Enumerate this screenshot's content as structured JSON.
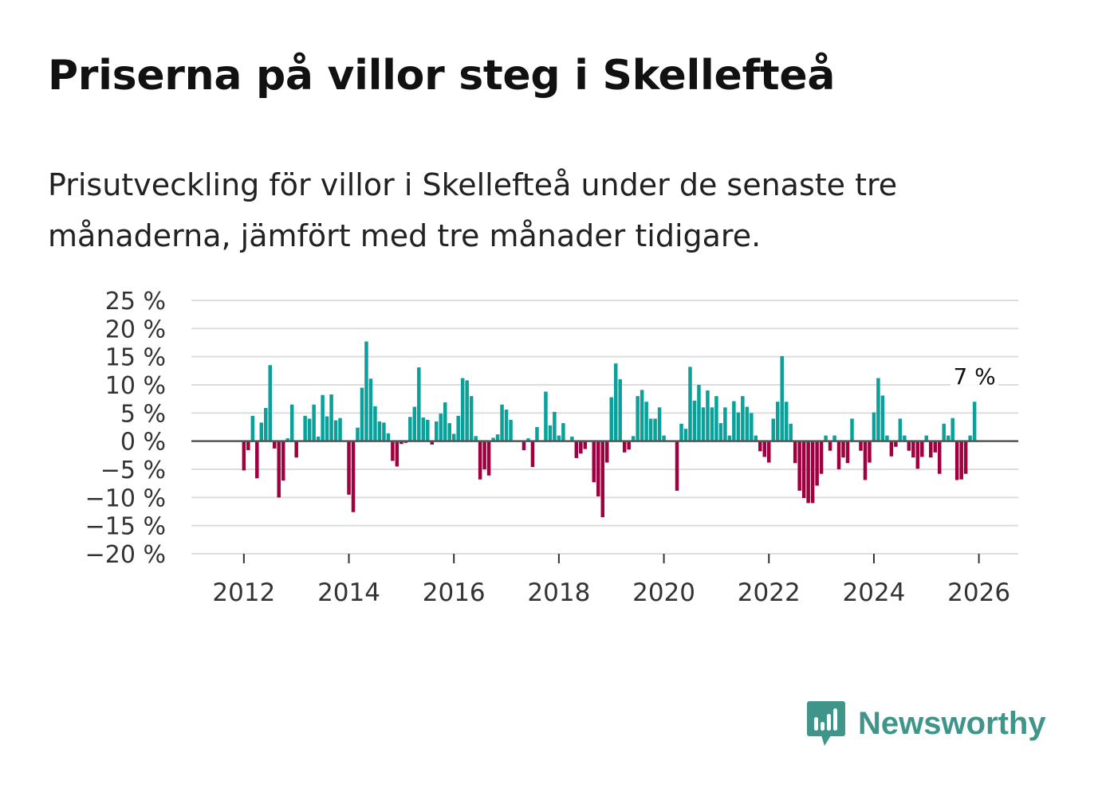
{
  "title": "Priserna på villor steg i Skellefteå",
  "subtitle": "Prisutveckling för villor i Skellefteå under de senaste tre månaderna, jämfört med tre månader tidigare.",
  "brand": {
    "name": "Newsworthy",
    "icon": "newsworthy-logo-icon",
    "color": "#3f958a"
  },
  "colors": {
    "positive": "#0aa19a",
    "negative": "#a0003f",
    "grid": "#dddddd",
    "zero": "#555555"
  },
  "chart_data": {
    "type": "bar",
    "title": "Priserna på villor steg i Skellefteå",
    "xlabel": "",
    "ylabel": "",
    "ylim": [
      -20,
      25
    ],
    "yticks": [
      25,
      20,
      15,
      10,
      5,
      0,
      -5,
      -10,
      -15,
      -20
    ],
    "ytick_labels": [
      "25 %",
      "20 %",
      "15 %",
      "10 %",
      "5 %",
      "0 %",
      "−5 %",
      "−10 %",
      "−15 %",
      "−20 %"
    ],
    "xlim": [
      2011.0,
      2026.75
    ],
    "xticks": [
      2012,
      2014,
      2016,
      2018,
      2020,
      2022,
      2024,
      2026
    ],
    "xtick_labels": [
      "2012",
      "2014",
      "2016",
      "2018",
      "2020",
      "2022",
      "2024",
      "2026"
    ],
    "start": "2012-01",
    "frequency": "monthly",
    "values": [
      -5.2,
      -1.6,
      4.5,
      -6.6,
      3.3,
      5.9,
      13.5,
      -1.3,
      -10.0,
      -7.0,
      0.5,
      6.5,
      -2.9,
      0.0,
      4.5,
      4.0,
      6.5,
      0.8,
      8.2,
      4.4,
      8.3,
      3.7,
      4.1,
      0.0,
      -9.5,
      -12.6,
      2.4,
      9.5,
      17.7,
      11.1,
      6.2,
      3.5,
      3.3,
      1.4,
      -3.5,
      -4.5,
      -0.5,
      -0.3,
      4.3,
      6.1,
      13.1,
      4.2,
      3.8,
      -0.6,
      3.5,
      4.9,
      6.9,
      3.2,
      1.3,
      4.5,
      11.2,
      10.8,
      8.0,
      0.9,
      -6.8,
      -5.0,
      -6.1,
      0.6,
      1.2,
      6.5,
      5.6,
      3.8,
      0.0,
      0.0,
      -1.6,
      0.5,
      -4.6,
      2.5,
      0.0,
      8.8,
      2.8,
      5.2,
      1.0,
      3.2,
      0.0,
      0.8,
      -3.0,
      -2.2,
      -1.4,
      0.0,
      -7.3,
      -9.8,
      -13.5,
      -3.8,
      7.8,
      13.8,
      11.0,
      -2.0,
      -1.5,
      0.9,
      8.0,
      9.1,
      7.0,
      4.0,
      4.0,
      6.0,
      1.0,
      0.0,
      0.0,
      -8.8,
      3.1,
      2.2,
      13.2,
      7.2,
      10.0,
      6.0,
      9.0,
      6.0,
      8.0,
      3.2,
      6.0,
      1.0,
      7.1,
      5.1,
      8.0,
      6.1,
      5.0,
      1.0,
      -1.8,
      -2.8,
      -3.8,
      4.0,
      7.0,
      15.1,
      7.0,
      3.1,
      -3.9,
      -8.8,
      -10.1,
      -11.0,
      -11.0,
      -7.9,
      -5.8,
      1.0,
      -1.7,
      1.0,
      -5.0,
      -2.9,
      -3.9,
      4.0,
      0.0,
      -1.7,
      -6.9,
      -3.8,
      5.1,
      11.2,
      8.1,
      1.0,
      -2.7,
      -1.0,
      4.0,
      1.0,
      -1.7,
      -2.9,
      -4.9,
      -2.8,
      1.0,
      -2.9,
      -2.0,
      -5.8,
      3.1,
      1.0,
      4.1,
      -6.9,
      -6.8,
      -5.8,
      1.0,
      7.0
    ],
    "last_value_label": "7 %"
  }
}
